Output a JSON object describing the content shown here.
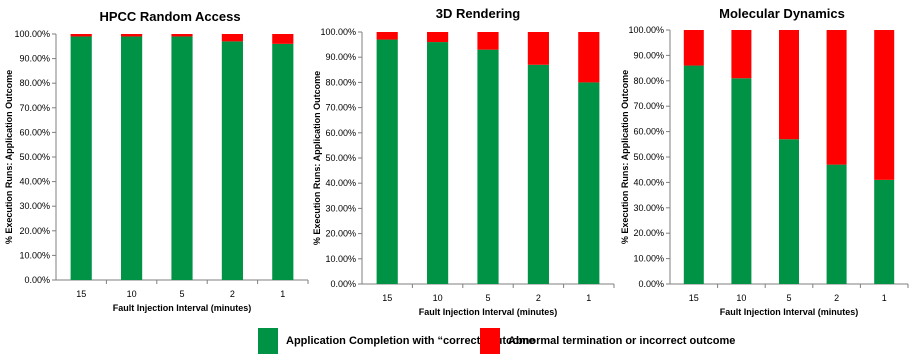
{
  "colors": {
    "correct": "#009245",
    "abnormal": "#ff0000",
    "axis": "#7f7f7f",
    "grid": "#d9d9d9"
  },
  "legend": {
    "correct_label": "Application Completion with “correct” outcome",
    "abnormal_label": "Abnormal termination or incorrect outcome"
  },
  "chart_data": [
    {
      "type": "bar",
      "stacked": true,
      "title": "HPCC Random Access",
      "xlabel": "Fault Injection Interval (minutes)",
      "ylabel": "% Execution Runs: Application Outcome",
      "categories": [
        "15",
        "10",
        "5",
        "2",
        "1"
      ],
      "ylim": [
        0,
        100
      ],
      "yticks": [
        "0.00%",
        "10.00%",
        "20.00%",
        "30.00%",
        "40.00%",
        "50.00%",
        "60.00%",
        "70.00%",
        "80.00%",
        "90.00%",
        "100.00%"
      ],
      "series": [
        {
          "name": "Application Completion with “correct” outcome",
          "values": [
            99.0,
            99.0,
            99.0,
            97.0,
            96.0
          ]
        },
        {
          "name": "Abnormal termination or incorrect outcome",
          "values": [
            1.0,
            1.0,
            1.0,
            3.0,
            4.0
          ]
        }
      ]
    },
    {
      "type": "bar",
      "stacked": true,
      "title": "3D Rendering",
      "xlabel": "Fault Injection Interval (minutes)",
      "ylabel": "% Execution Runs: Application Outcome",
      "categories": [
        "15",
        "10",
        "5",
        "2",
        "1"
      ],
      "ylim": [
        0,
        100
      ],
      "yticks": [
        "0.00%",
        "10.00%",
        "20.00%",
        "30.00%",
        "40.00%",
        "50.00%",
        "60.00%",
        "70.00%",
        "80.00%",
        "90.00%",
        "100.00%"
      ],
      "series": [
        {
          "name": "Application Completion with “correct” outcome",
          "values": [
            97.0,
            96.0,
            93.0,
            87.0,
            80.0
          ]
        },
        {
          "name": "Abnormal termination or incorrect outcome",
          "values": [
            3.0,
            4.0,
            7.0,
            13.0,
            20.0
          ]
        }
      ]
    },
    {
      "type": "bar",
      "stacked": true,
      "title": "Molecular Dynamics",
      "xlabel": "Fault Injection Interval (minutes)",
      "ylabel": "% Execution Runs: Application Outcome",
      "categories": [
        "15",
        "10",
        "5",
        "2",
        "1"
      ],
      "ylim": [
        0,
        100
      ],
      "yticks": [
        "0.00%",
        "10.00%",
        "20.00%",
        "30.00%",
        "40.00%",
        "50.00%",
        "60.00%",
        "70.00%",
        "80.00%",
        "90.00%",
        "100.00%"
      ],
      "series": [
        {
          "name": "Application Completion with “correct” outcome",
          "values": [
            86.0,
            81.0,
            57.0,
            47.0,
            41.0
          ]
        },
        {
          "name": "Abnormal termination or incorrect outcome",
          "values": [
            14.0,
            19.0,
            43.0,
            53.0,
            59.0
          ]
        }
      ]
    }
  ]
}
